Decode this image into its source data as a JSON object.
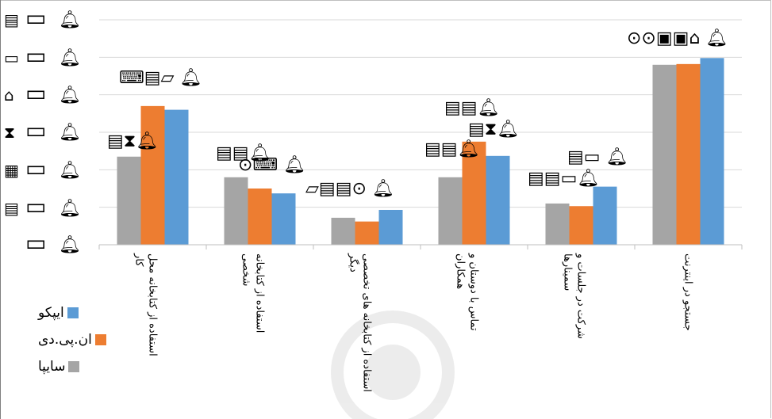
{
  "chart_data": {
    "type": "bar",
    "categories": [
      "استفاده از کتابخانه محل کار",
      "استفاده از کتابخانه شخصی",
      "استفاده از کتابخانه های تخصصی دیگر",
      "تماس با دوستان و همکاران",
      "شرکت در جلسات و سمینارها",
      "جستجو در اینترنت"
    ],
    "series": [
      {
        "name": "سایپا",
        "values": [
          2.35,
          1.8,
          0.72,
          1.8,
          1.1,
          4.8
        ],
        "color": "#a5a5a5"
      },
      {
        "name": "ان.پی.دی",
        "values": [
          3.7,
          1.5,
          0.62,
          2.75,
          1.03,
          4.82
        ],
        "color": "#ed7d31"
      },
      {
        "name": "ایپکو",
        "values": [
          3.6,
          1.37,
          0.93,
          2.37,
          1.55,
          4.98
        ],
        "color": "#5b9bd5"
      }
    ],
    "ylim": [
      0,
      6
    ],
    "grid": true,
    "legend_position": "bottom-left",
    "legend_order": [
      "ایپکو",
      "ان.پی.دی",
      "سایپا"
    ],
    "title": "",
    "xlabel": "",
    "ylabel": ""
  },
  "icons": [
    "document-icon",
    "folder-icon",
    "bell-icon",
    "hourglass-icon",
    "mouse-icon",
    "keyboard-icon",
    "camera-icon"
  ]
}
